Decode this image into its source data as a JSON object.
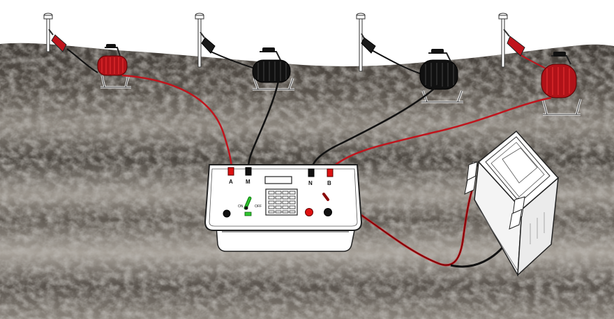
{
  "terminals": {
    "a": "A",
    "m": "M",
    "n": "N",
    "b": "B"
  },
  "switch": {
    "on": "ON",
    "off": "OFF"
  },
  "colors": {
    "red_wire": "#c0141c",
    "black_wire": "#111111",
    "ground_dark": "#4a4540",
    "ground_light": "#a8a29a",
    "sky": "#ffffff",
    "power_led": "#2fc82f",
    "button_red": "#e01010"
  },
  "icons": [
    "electrode-stake-icon",
    "alligator-clip-icon",
    "cable-reel-icon",
    "resistivity-meter-icon",
    "battery-icon"
  ]
}
